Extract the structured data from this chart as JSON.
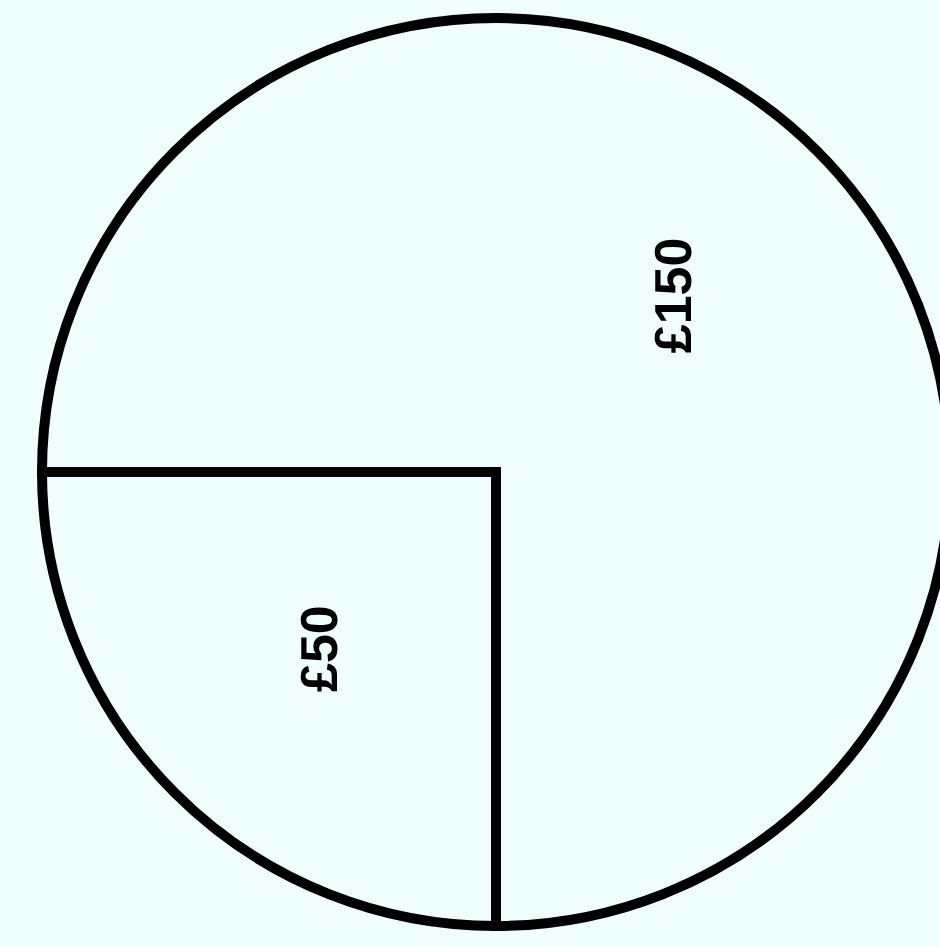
{
  "chart_data": {
    "type": "pie",
    "categories": [
      null,
      null
    ],
    "values": [
      150,
      50
    ],
    "value_labels": [
      "£150",
      "£50"
    ],
    "colors": [
      "#f0fdfd",
      "#f0fdfd"
    ]
  }
}
